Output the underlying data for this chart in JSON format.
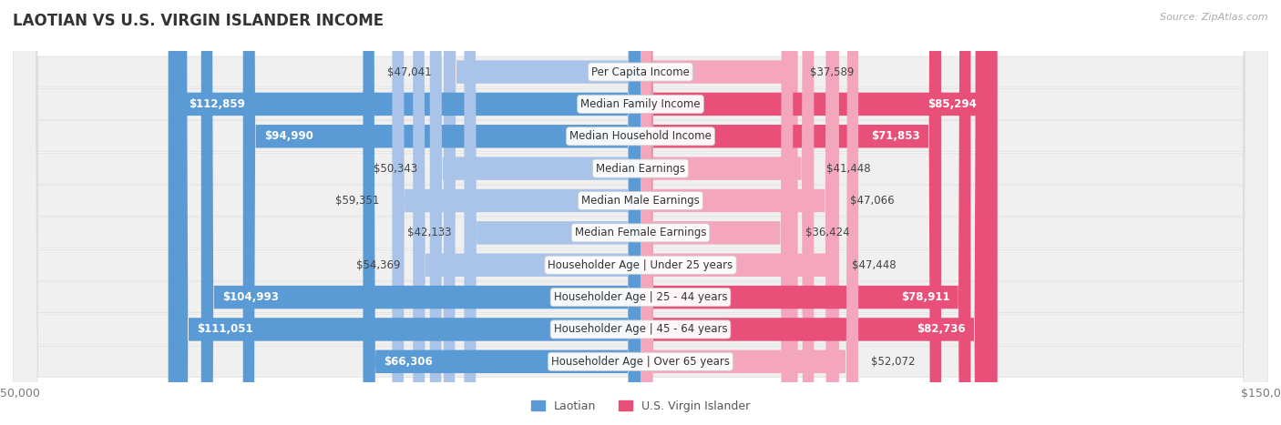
{
  "title": "LAOTIAN VS U.S. VIRGIN ISLANDER INCOME",
  "source": "Source: ZipAtlas.com",
  "categories": [
    "Per Capita Income",
    "Median Family Income",
    "Median Household Income",
    "Median Earnings",
    "Median Male Earnings",
    "Median Female Earnings",
    "Householder Age | Under 25 years",
    "Householder Age | 25 - 44 years",
    "Householder Age | 45 - 64 years",
    "Householder Age | Over 65 years"
  ],
  "laotian_values": [
    47041,
    112859,
    94990,
    50343,
    59351,
    42133,
    54369,
    104993,
    111051,
    66306
  ],
  "usvi_values": [
    37589,
    85294,
    71853,
    41448,
    47066,
    36424,
    47448,
    78911,
    82736,
    52072
  ],
  "laotian_labels": [
    "$47,041",
    "$112,859",
    "$94,990",
    "$50,343",
    "$59,351",
    "$42,133",
    "$54,369",
    "$104,993",
    "$111,051",
    "$66,306"
  ],
  "usvi_labels": [
    "$37,589",
    "$85,294",
    "$71,853",
    "$41,448",
    "$47,066",
    "$36,424",
    "$47,448",
    "$78,911",
    "$82,736",
    "$52,072"
  ],
  "max_value": 150000,
  "laotian_color_large": "#5b9bd5",
  "laotian_color_small": "#a9c4e8",
  "usvi_color_large": "#e8507a",
  "usvi_color_small": "#f4a7bc",
  "row_bg_color": "#f0f0f0",
  "row_border_color": "#e0e0e0",
  "title_fontsize": 12,
  "label_fontsize": 8.5,
  "tick_fontsize": 9,
  "legend_fontsize": 9,
  "large_threshold": 60000
}
